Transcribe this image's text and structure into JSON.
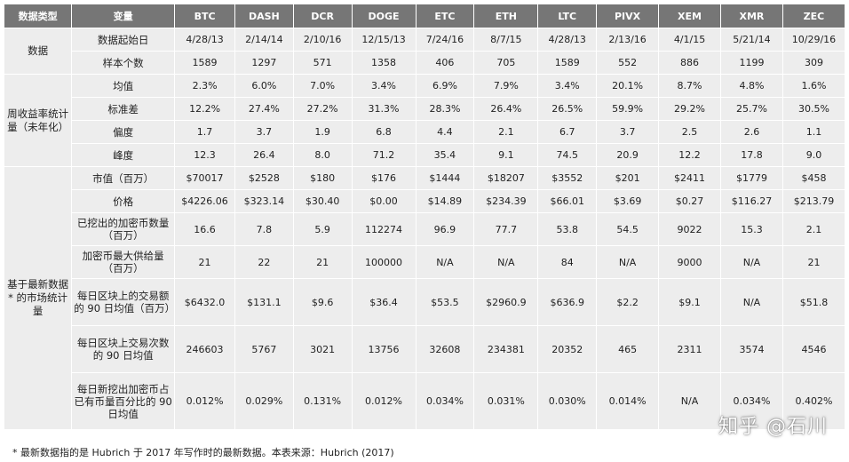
{
  "table": {
    "header": {
      "group_label": "数据类型",
      "variable_label": "变量",
      "coins": [
        "BTC",
        "DASH",
        "DCR",
        "DOGE",
        "ETC",
        "ETH",
        "LTC",
        "PIVX",
        "XEM",
        "XMR",
        "ZEC"
      ]
    },
    "groups": [
      {
        "label": "数据",
        "rows": [
          {
            "name": "数据起始日",
            "values": [
              "4/28/13",
              "2/14/14",
              "2/10/16",
              "12/15/13",
              "7/24/16",
              "8/7/15",
              "4/28/13",
              "2/13/16",
              "4/1/15",
              "5/21/14",
              "10/29/16"
            ]
          },
          {
            "name": "样本个数",
            "values": [
              "1589",
              "1297",
              "571",
              "1358",
              "406",
              "705",
              "1589",
              "552",
              "886",
              "1199",
              "309"
            ]
          }
        ]
      },
      {
        "label": "周收益率统计量（未年化）",
        "rows": [
          {
            "name": "均值",
            "values": [
              "2.3%",
              "6.0%",
              "7.0%",
              "3.4%",
              "6.9%",
              "7.9%",
              "3.4%",
              "20.1%",
              "8.7%",
              "4.8%",
              "1.6%"
            ]
          },
          {
            "name": "标准差",
            "values": [
              "12.2%",
              "27.4%",
              "27.2%",
              "31.3%",
              "28.3%",
              "26.4%",
              "26.5%",
              "59.9%",
              "29.2%",
              "25.7%",
              "30.5%"
            ]
          },
          {
            "name": "偏度",
            "values": [
              "1.7",
              "3.7",
              "1.9",
              "6.8",
              "4.4",
              "2.1",
              "6.7",
              "3.7",
              "2.5",
              "2.6",
              "1.1"
            ]
          },
          {
            "name": "峰度",
            "values": [
              "12.3",
              "26.4",
              "8.0",
              "71.2",
              "35.4",
              "9.1",
              "74.5",
              "20.9",
              "12.2",
              "17.8",
              "9.0"
            ]
          }
        ]
      },
      {
        "label": "基于最新数据* 的市场统计量",
        "rows": [
          {
            "name": "市值（百万）",
            "values": [
              "$70017",
              "$2528",
              "$180",
              "$176",
              "$1444",
              "$18207",
              "$3552",
              "$201",
              "$2411",
              "$1779",
              "$458"
            ]
          },
          {
            "name": "价格",
            "values": [
              "$4226.06",
              "$323.14",
              "$30.40",
              "$0.00",
              "$14.89",
              "$234.39",
              "$66.01",
              "$3.69",
              "$0.27",
              "$116.27",
              "$213.79"
            ]
          },
          {
            "name": "已挖出的加密币数量（百万）",
            "values": [
              "16.6",
              "7.8",
              "5.9",
              "112274",
              "96.9",
              "77.7",
              "53.8",
              "54.5",
              "9022",
              "15.3",
              "2.1"
            ]
          },
          {
            "name": "加密币最大供给量（百万）",
            "values": [
              "21",
              "22",
              "21",
              "100000",
              "N/A",
              "N/A",
              "84",
              "N/A",
              "9000",
              "N/A",
              "21"
            ]
          },
          {
            "name": "每日区块上的交易额的 90 日均值（百万）",
            "values": [
              "$6432.0",
              "$131.1",
              "$9.6",
              "$36.4",
              "$53.5",
              "$2960.9",
              "$636.9",
              "$2.2",
              "$9.1",
              "N/A",
              "$51.8"
            ]
          },
          {
            "name": "每日区块上交易次数的 90 日均值",
            "values": [
              "246603",
              "5767",
              "3021",
              "13756",
              "32608",
              "234381",
              "20352",
              "465",
              "2311",
              "3574",
              "4546"
            ]
          },
          {
            "name": "每日新挖出加密币占已有币量百分比的 90 日均值",
            "values": [
              "0.012%",
              "0.029%",
              "0.131%",
              "0.012%",
              "0.034%",
              "0.031%",
              "0.030%",
              "0.014%",
              "N/A",
              "0.034%",
              "0.402%"
            ]
          }
        ]
      }
    ]
  },
  "footnote": "* 最新数据指的是 Hubrich 于 2017 年写作时的最新数据。本表来源：Hubrich (2017)",
  "watermark": "知乎 @石川",
  "colors": {
    "header_bg": "#767676",
    "cell_bg": "#ededed",
    "header_text": "#ffffff"
  }
}
